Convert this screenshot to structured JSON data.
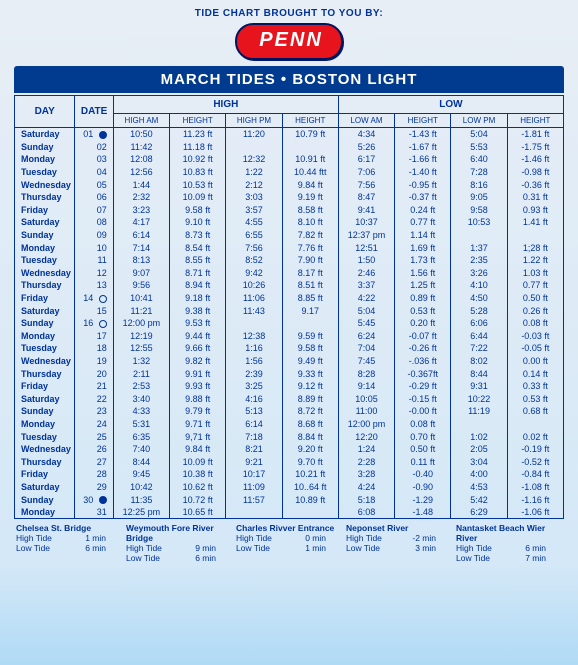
{
  "brought_by": "TIDE CHART BROUGHT TO YOU BY:",
  "logo_text": "PENN",
  "title": "MARCH TIDES • BOSTON LIGHT",
  "headers": {
    "day": "DAY",
    "date": "DATE",
    "high": "HIGH",
    "low": "LOW",
    "high_am": "HIGH AM",
    "height1": "HEIGHT",
    "high_pm": "HIGH PM",
    "height2": "HEIGHT",
    "low_am": "LOW AM",
    "height3": "HEIGHT",
    "low_pm": "LOW PM",
    "height4": "HEIGHT"
  },
  "rows": [
    {
      "day": "Saturday",
      "date": "01",
      "moon": "full",
      "ham": "10:50",
      "h1": "11.23 ft",
      "hpm": "11:20",
      "h2": "10.79 ft",
      "lam": "4:34",
      "h3": "-1.43 ft",
      "lpm": "5:04",
      "h4": "-1.81 ft"
    },
    {
      "day": "Sunday",
      "date": "02",
      "ham": "11:42",
      "h1": "11.18 ft",
      "hpm": "",
      "h2": "",
      "lam": "5:26",
      "h3": "-1.67 ft",
      "lpm": "5:53",
      "h4": "-1.75 ft"
    },
    {
      "day": "Monday",
      "date": "03",
      "ham": "12:08",
      "h1": "10.92 ft",
      "hpm": "12:32",
      "h2": "10.91 ft",
      "lam": "6:17",
      "h3": "-1.66 ft",
      "lpm": "6:40",
      "h4": "-1.46 ft"
    },
    {
      "day": "Tuesday",
      "date": "04",
      "ham": "12:56",
      "h1": "10.83 ft",
      "hpm": "1:22",
      "h2": "10.44 ftt",
      "lam": "7:06",
      "h3": "-1.40 ft",
      "lpm": "7:28",
      "h4": "-0.98 ft"
    },
    {
      "day": "Wednesday",
      "date": "05",
      "ham": "1:44",
      "h1": "10.53 ft",
      "hpm": "2:12",
      "h2": "9.84 ft",
      "lam": "7:56",
      "h3": "-0.95 ft",
      "lpm": "8:16",
      "h4": "-0.36 ft"
    },
    {
      "day": "Thursday",
      "date": "06",
      "ham": "2:32",
      "h1": "10.09 ft",
      "hpm": "3:03",
      "h2": "9.19 ft",
      "lam": "8:47",
      "h3": "-0.37 ft",
      "lpm": "9:05",
      "h4": "0.31 ft"
    },
    {
      "day": "Friday",
      "date": "07",
      "ham": "3:23",
      "h1": "9.58 ft",
      "hpm": "3:57",
      "h2": "8.58 ft",
      "lam": "9:41",
      "h3": "0.24 ft",
      "lpm": "9:58",
      "h4": "0.93 ft"
    },
    {
      "day": "Saturday",
      "date": "08",
      "ham": "4:17",
      "h1": "9.10 ft",
      "hpm": "4:55",
      "h2": "8.10 ft",
      "lam": "10:37",
      "h3": "0.77 ft",
      "lpm": "10:53",
      "h4": "1.41 ft"
    },
    {
      "day": "Sunday",
      "date": "09",
      "ham": "6:14",
      "h1": "8.73 ft",
      "hpm": "6:55",
      "h2": "7.82 ft",
      "lam": "12:37 pm",
      "h3": "1.14 ft",
      "lpm": "",
      "h4": ""
    },
    {
      "day": "Monday",
      "date": "10",
      "ham": "7:14",
      "h1": "8.54 ft",
      "hpm": "7:56",
      "h2": "7.76 ft",
      "lam": "12:51",
      "h3": "1.69 ft",
      "lpm": "1:37",
      "h4": "1;28 ft"
    },
    {
      "day": "Tuesday",
      "date": "11",
      "ham": "8:13",
      "h1": "8.55 ft",
      "hpm": "8:52",
      "h2": "7.90 ft",
      "lam": "1:50",
      "h3": "1.73 ft",
      "lpm": "2:35",
      "h4": "1.22 ft"
    },
    {
      "day": "Wednesday",
      "date": "12",
      "ham": "9:07",
      "h1": "8.71 ft",
      "hpm": "9:42",
      "h2": "8.17 ft",
      "lam": "2:46",
      "h3": "1.56 ft",
      "lpm": "3:26",
      "h4": "1.03 ft"
    },
    {
      "day": "Thursday",
      "date": "13",
      "ham": "9:56",
      "h1": "8.94 ft",
      "hpm": "10:26",
      "h2": "8.51 ft",
      "lam": "3:37",
      "h3": "1.25 ft",
      "lpm": "4:10",
      "h4": "0.77 ft"
    },
    {
      "day": "Friday",
      "date": "14",
      "moon": "new",
      "ham": "10:41",
      "h1": "9.18 ft",
      "hpm": "11:06",
      "h2": "8.85 ft",
      "lam": "4:22",
      "h3": "0.89 ft",
      "lpm": "4:50",
      "h4": "0.50 ft"
    },
    {
      "day": "Saturday",
      "date": "15",
      "ham": "11:21",
      "h1": "9.38 ft",
      "hpm": "11:43",
      "h2": "9.17",
      "lam": "5:04",
      "h3": "0.53 ft",
      "lpm": "5:28",
      "h4": "0.26 ft"
    },
    {
      "day": "Sunday",
      "date": "16",
      "moon": "new",
      "ham": "12:00 pm",
      "h1": "9.53 ft",
      "hpm": "",
      "h2": "",
      "lam": "5:45",
      "h3": "0.20 ft",
      "lpm": "6:06",
      "h4": "0.08 ft"
    },
    {
      "day": "Monday",
      "date": "17",
      "ham": "12:19",
      "h1": "9.44 ft",
      "hpm": "12:38",
      "h2": "9.59 ft",
      "lam": "6:24",
      "h3": "-0.07 ft",
      "lpm": "6:44",
      "h4": "-0.03 ft"
    },
    {
      "day": "Tuesday",
      "date": "18",
      "ham": "12:55",
      "h1": "9.66 ft",
      "hpm": "1:16",
      "h2": "9.58 ft",
      "lam": "7:04",
      "h3": "-0.26 ft",
      "lpm": "7:22",
      "h4": "-0.05 ft"
    },
    {
      "day": "Wednesday",
      "date": "19",
      "ham": "1:32",
      "h1": "9.82 ft",
      "hpm": "1:56",
      "h2": "9.49 ft",
      "lam": "7:45",
      "h3": "-.036 ft",
      "lpm": "8:02",
      "h4": "0.00 ft"
    },
    {
      "day": "Thursday",
      "date": "20",
      "ham": "2:11",
      "h1": "9.91 ft",
      "hpm": "2:39",
      "h2": "9.33 ft",
      "lam": "8:28",
      "h3": "-0.367ft",
      "lpm": "8:44",
      "h4": "0.14 ft"
    },
    {
      "day": "Friday",
      "date": "21",
      "ham": "2:53",
      "h1": "9.93 ft",
      "hpm": "3:25",
      "h2": "9.12 ft",
      "lam": "9:14",
      "h3": "-0.29 ft",
      "lpm": "9:31",
      "h4": "0.33 ft"
    },
    {
      "day": "Saturday",
      "date": "22",
      "ham": "3:40",
      "h1": "9.88 ft",
      "hpm": "4:16",
      "h2": "8.89 ft",
      "lam": "10:05",
      "h3": "-0.15 ft",
      "lpm": "10:22",
      "h4": "0.53 ft"
    },
    {
      "day": "Sunday",
      "date": "23",
      "ham": "4:33",
      "h1": "9.79 ft",
      "hpm": "5:13",
      "h2": "8.72 ft",
      "lam": "11:00",
      "h3": "-0.00 ft",
      "lpm": "11:19",
      "h4": "0.68 ft"
    },
    {
      "day": "Monday",
      "date": "24",
      "ham": "5:31",
      "h1": "9.71 ft",
      "hpm": "6:14",
      "h2": "8.68 ft",
      "lam": "12:00 pm",
      "h3": "0.08 ft",
      "lpm": "",
      "h4": ""
    },
    {
      "day": "Tuesday",
      "date": "25",
      "ham": "6:35",
      "h1": "9,71 ft",
      "hpm": "7:18",
      "h2": "8.84 ft",
      "lam": "12:20",
      "h3": "0.70 ft",
      "lpm": "1:02",
      "h4": "0.02 ft"
    },
    {
      "day": "Wednesday",
      "date": "26",
      "ham": "7:40",
      "h1": "9.84 ft",
      "hpm": "8:21",
      "h2": "9.20 ft",
      "lam": "1:24",
      "h3": "0.50 ft",
      "lpm": "2:05",
      "h4": "-0.19 ft"
    },
    {
      "day": "Thursday",
      "date": "27",
      "ham": "8:44",
      "h1": "10.09 ft",
      "hpm": "9:21",
      "h2": "9.70 ft",
      "lam": "2:28",
      "h3": "0.11 ft",
      "lpm": "3:04",
      "h4": "-0.52 ft"
    },
    {
      "day": "Friday",
      "date": "28",
      "ham": "9:45",
      "h1": "10.38 ft",
      "hpm": "10:17",
      "h2": "10.21 ft",
      "lam": "3:28",
      "h3": "-0.40",
      "lpm": "4:00",
      "h4": "-0.84 ft"
    },
    {
      "day": "Saturday",
      "date": "29",
      "ham": "10:42",
      "h1": "10.62 ft",
      "hpm": "11:09",
      "h2": "10..64 ft",
      "lam": "4:24",
      "h3": "-0.90",
      "lpm": "4:53",
      "h4": "-1.08 ft"
    },
    {
      "day": "Sunday",
      "date": "30",
      "moon": "full",
      "ham": "11:35",
      "h1": "10.72 ft",
      "hpm": "11:57",
      "h2": "10.89 ft",
      "lam": "5:18",
      "h3": "-1.29",
      "lpm": "5:42",
      "h4": "-1.16 ft"
    },
    {
      "day": "Monday",
      "date": "31",
      "ham": "12:25 pm",
      "h1": "10.65 ft",
      "hpm": "",
      "h2": "",
      "lam": "6:08",
      "h3": "-1.48",
      "lpm": "6:29",
      "h4": "-1.06 ft"
    }
  ],
  "footer": [
    {
      "name": "Chelsea St. Bridge",
      "ht": "High Tide",
      "hv": "1 min",
      "lt": "Low Tide",
      "lv": "6 min"
    },
    {
      "name": "Weymouth Fore River Bridge",
      "ht": "High Tide",
      "hv": "9 min",
      "lt": "Low Tide",
      "lv": "6 min"
    },
    {
      "name": "Charles Rivver Entrance",
      "ht": "High Tide",
      "hv": "0 min",
      "lt": "Low Tide",
      "lv": "1 min"
    },
    {
      "name": "Neponset River",
      "ht": "High Tide",
      "hv": "-2 min",
      "lt": "Low Tide",
      "lv": "3 min"
    },
    {
      "name": "Nantasket Beach Wier River",
      "ht": "High Tide",
      "hv": "6 min",
      "lt": "Low Tide",
      "lv": "7 min"
    }
  ]
}
